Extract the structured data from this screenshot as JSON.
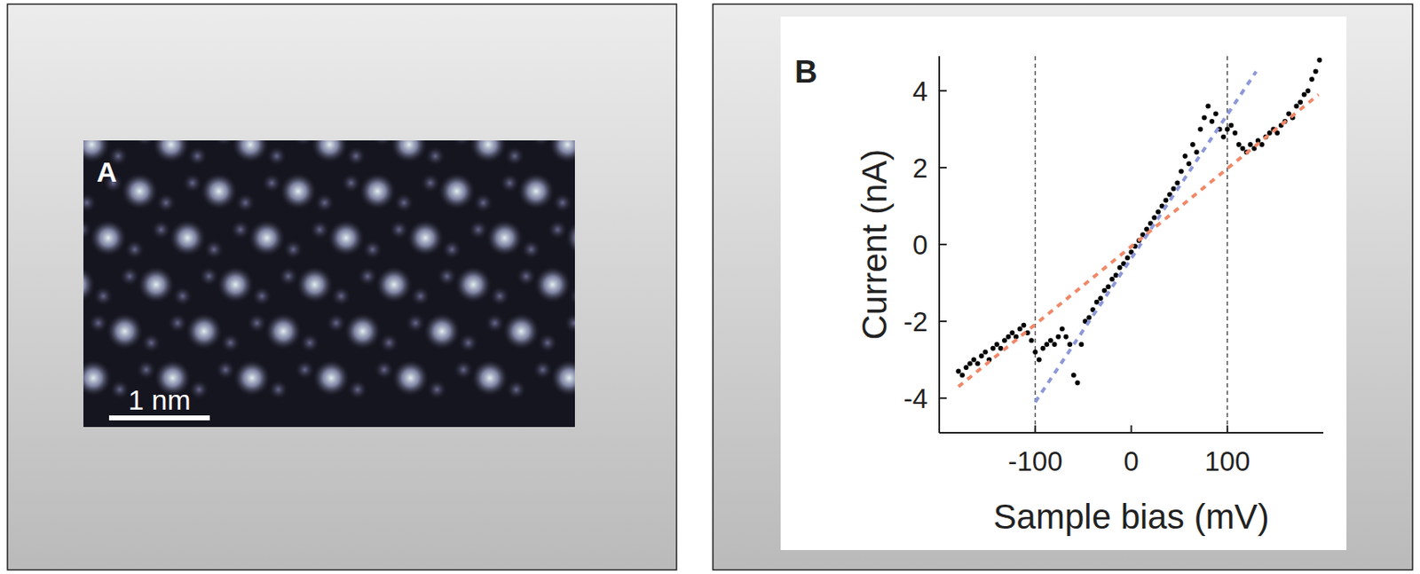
{
  "image_panel": {
    "label": "A",
    "scale_bar_label": "1 nm"
  },
  "chart_data": {
    "type": "scatter",
    "panel_label": "B",
    "xlabel": "Sample bias (mV)",
    "ylabel": "Current (nA)",
    "xlim": [
      -200,
      200
    ],
    "ylim": [
      -4.9,
      4.9
    ],
    "xticks": [
      -100,
      0,
      100
    ],
    "yticks": [
      -4,
      -2,
      0,
      2,
      4
    ],
    "vlines": [
      -100,
      100
    ],
    "series": [
      {
        "type": "scatter",
        "color": "#000000",
        "marker": "circle",
        "x": [
          -180,
          -176,
          -172,
          -168,
          -164,
          -160,
          -156,
          -152,
          -148,
          -144,
          -140,
          -136,
          -132,
          -128,
          -124,
          -120,
          -116,
          -112,
          -108,
          -104,
          -100,
          -96,
          -92,
          -88,
          -84,
          -80,
          -76,
          -72,
          -68,
          -64,
          -60,
          -56,
          -52,
          -48,
          -44,
          -40,
          -36,
          -32,
          -28,
          -24,
          -20,
          -16,
          -12,
          -8,
          -4,
          0,
          4,
          8,
          12,
          16,
          20,
          24,
          28,
          32,
          36,
          40,
          44,
          48,
          52,
          56,
          60,
          64,
          68,
          72,
          76,
          80,
          84,
          88,
          92,
          96,
          100,
          104,
          108,
          112,
          116,
          120,
          124,
          128,
          132,
          136,
          140,
          144,
          148,
          152,
          156,
          160,
          164,
          168,
          172,
          176,
          180,
          184,
          188,
          192,
          196
        ],
        "values": [
          -3.3,
          -3.4,
          -3.2,
          -3.1,
          -3.0,
          -3.1,
          -2.9,
          -2.8,
          -3.0,
          -2.7,
          -2.6,
          -2.7,
          -2.5,
          -2.4,
          -2.3,
          -2.4,
          -2.2,
          -2.1,
          -2.3,
          -2.5,
          -2.8,
          -3.0,
          -2.7,
          -2.6,
          -2.5,
          -2.6,
          -2.4,
          -2.2,
          -2.4,
          -2.6,
          -3.4,
          -3.6,
          -2.6,
          -2.0,
          -1.9,
          -1.7,
          -1.5,
          -1.4,
          -1.2,
          -1.1,
          -0.9,
          -0.8,
          -0.6,
          -0.5,
          -0.35,
          -0.2,
          -0.05,
          0.1,
          0.25,
          0.4,
          0.55,
          0.7,
          0.85,
          1.0,
          1.15,
          1.3,
          1.45,
          1.6,
          1.9,
          2.3,
          2.1,
          2.6,
          2.4,
          3.0,
          3.3,
          3.6,
          3.2,
          3.4,
          3.0,
          2.8,
          3.0,
          3.1,
          2.9,
          2.6,
          2.5,
          2.4,
          2.6,
          2.5,
          2.7,
          2.6,
          2.8,
          2.9,
          3.0,
          2.9,
          3.1,
          3.2,
          3.4,
          3.3,
          3.6,
          3.7,
          3.9,
          4.0,
          4.3,
          4.5,
          4.8
        ]
      },
      {
        "type": "line",
        "color": "#8c98d8",
        "line_style": "dotted",
        "x": [
          -100,
          130
        ],
        "values": [
          -4.1,
          4.5
        ]
      },
      {
        "type": "line",
        "color": "#f08868",
        "line_style": "dotted",
        "x": [
          -180,
          195
        ],
        "values": [
          -3.7,
          3.9
        ]
      }
    ]
  }
}
